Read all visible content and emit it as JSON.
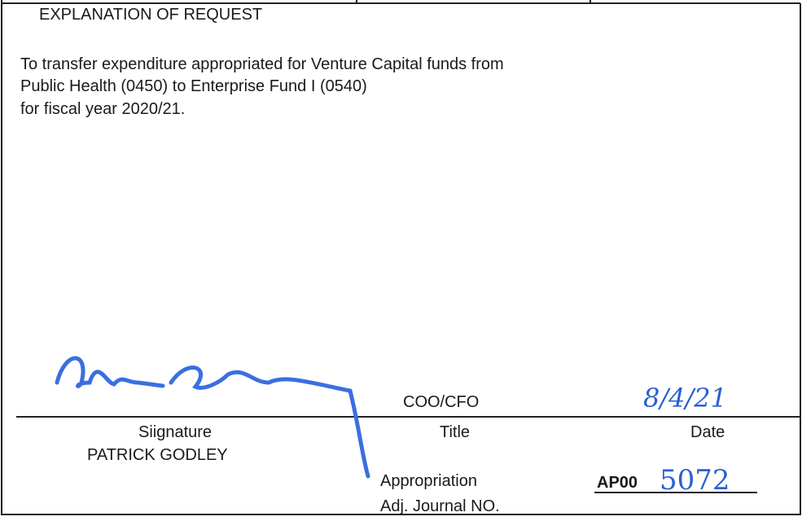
{
  "heading": "EXPLANATION OF REQUEST",
  "explanation": [
    "To transfer expenditure appropriated for Venture Capital funds from",
    "Public Health (0450) to Enterprise Fund I (0540)",
    "for fiscal year 2020/21."
  ],
  "signature_block": {
    "title_value": "COO/CFO",
    "date_value": "8/4/21",
    "signature_label": "Siignature",
    "title_label": "Title",
    "date_label": "Date",
    "name": "PATRICK GODLEY"
  },
  "journal": {
    "label_line1": "Appropriation",
    "label_line2": "Adj. Journal NO.",
    "prefix": "AP00",
    "number": "5072"
  }
}
